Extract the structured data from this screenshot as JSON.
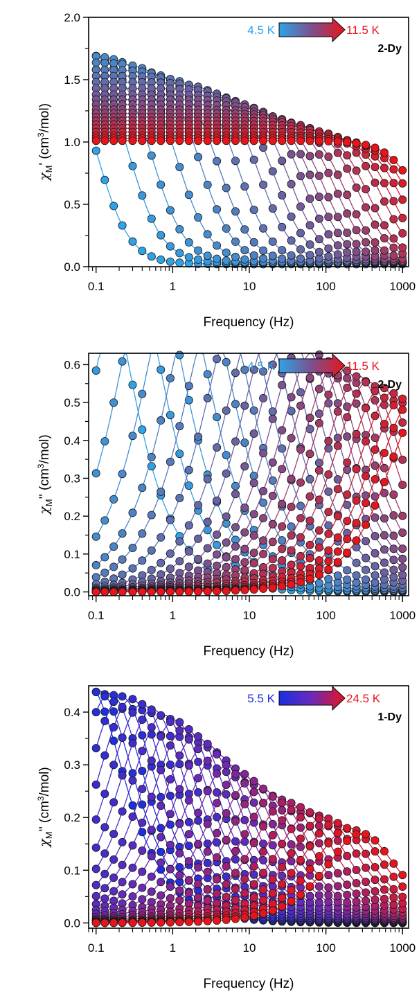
{
  "chart_data": [
    {
      "type": "scatter",
      "title": "",
      "xlabel": "Frequency (Hz)",
      "ylabel": "χM' (cm³/mol)",
      "ylabel_parts": {
        "chi": "χ",
        "sub": "M",
        "prime": "'",
        "unit_pre": " (cm",
        "sup": "3",
        "unit_post": "/mol)"
      },
      "x_scale": "log",
      "xlim": [
        0.08,
        1200
      ],
      "ylim": [
        0,
        2.0
      ],
      "xticks": [
        0.1,
        1,
        10,
        100,
        1000
      ],
      "xtick_labels": [
        "0.1",
        "1",
        "10",
        "100",
        "1000"
      ],
      "yticks": [
        0,
        0.5,
        1.0,
        1.5,
        2.0
      ],
      "ytick_labels": [
        "0.0",
        "0.5",
        "1.0",
        "1.5",
        "2.0"
      ],
      "compound": "2-Dy",
      "temperature_legend": {
        "start": "4.5 K",
        "end": "11.5 K",
        "start_color": "#2ea3e6",
        "end_color": "#e8141c"
      },
      "colors": {
        "start": "#2ea3e6",
        "mid": "#7d4f8e",
        "end": "#e8141c"
      },
      "model": "debye",
      "quantity": "in-phase",
      "grid": false,
      "series": [
        {
          "chiT": 1.85,
          "chiS": 0.02,
          "tau": 1.6
        },
        {
          "chiT": 1.8,
          "chiS": 0.03,
          "tau": 0.6
        },
        {
          "chiT": 1.75,
          "chiS": 0.03,
          "tau": 0.3
        },
        {
          "chiT": 1.7,
          "chiS": 0.03,
          "tau": 0.14
        },
        {
          "chiT": 1.64,
          "chiS": 0.03,
          "tau": 0.07
        },
        {
          "chiT": 1.58,
          "chiS": 0.03,
          "tau": 0.04
        },
        {
          "chiT": 1.53,
          "chiS": 0.03,
          "tau": 0.022
        },
        {
          "chiT": 1.48,
          "chiS": 0.03,
          "tau": 0.012
        },
        {
          "chiT": 1.43,
          "chiS": 0.03,
          "tau": 0.0075
        },
        {
          "chiT": 1.38,
          "chiS": 0.03,
          "tau": 0.0048
        },
        {
          "chiT": 1.34,
          "chiS": 0.03,
          "tau": 0.0032
        },
        {
          "chiT": 1.3,
          "chiS": 0.03,
          "tau": 0.0023
        },
        {
          "chiT": 1.26,
          "chiS": 0.03,
          "tau": 0.0017
        },
        {
          "chiT": 1.23,
          "chiS": 0.03,
          "tau": 0.0012
        },
        {
          "chiT": 1.2,
          "chiS": 0.03,
          "tau": 0.0009
        },
        {
          "chiT": 1.17,
          "chiS": 0.03,
          "tau": 0.0006
        },
        {
          "chiT": 1.14,
          "chiS": 0.03,
          "tau": 0.00045
        },
        {
          "chiT": 1.11,
          "chiS": 0.03,
          "tau": 0.0003
        },
        {
          "chiT": 1.08,
          "chiS": 0.03,
          "tau": 0.00022
        },
        {
          "chiT": 1.05,
          "chiS": 0.03,
          "tau": 0.00016
        },
        {
          "chiT": 1.03,
          "chiS": 0.03,
          "tau": 0.00012
        },
        {
          "chiT": 1.01,
          "chiS": 0.03,
          "tau": 9e-05
        }
      ]
    },
    {
      "type": "scatter",
      "title": "",
      "xlabel": "Frequency (Hz)",
      "ylabel": "χM'' (cm³/mol)",
      "ylabel_parts": {
        "chi": "χ",
        "sub": "M",
        "prime": "''",
        "unit_pre": " (cm",
        "sup": "3",
        "unit_post": "/mol)"
      },
      "x_scale": "log",
      "xlim": [
        0.08,
        1200
      ],
      "ylim": [
        -0.01,
        0.63
      ],
      "xticks": [
        0.1,
        1,
        10,
        100,
        1000
      ],
      "xtick_labels": [
        "0.1",
        "1",
        "10",
        "100",
        "1000"
      ],
      "yticks": [
        0,
        0.1,
        0.2,
        0.3,
        0.4,
        0.5,
        0.6
      ],
      "ytick_labels": [
        "0.0",
        "0.1",
        "0.2",
        "0.3",
        "0.4",
        "0.5",
        "0.6"
      ],
      "compound": "2-Dy",
      "temperature_legend": {
        "start": "4.5 K",
        "end": "11.5 K",
        "start_color": "#2ea3e6",
        "end_color": "#e8141c"
      },
      "colors": {
        "start": "#2ea3e6",
        "mid": "#7d4f8e",
        "end": "#e8141c"
      },
      "model": "debye",
      "quantity": "out-of-phase",
      "grid": false,
      "series": [
        {
          "chiT": 1.85,
          "chiS": 0.02,
          "tau": 1.6
        },
        {
          "chiT": 1.8,
          "chiS": 0.03,
          "tau": 0.6
        },
        {
          "chiT": 1.75,
          "chiS": 0.03,
          "tau": 0.3
        },
        {
          "chiT": 1.7,
          "chiS": 0.03,
          "tau": 0.14
        },
        {
          "chiT": 1.64,
          "chiS": 0.03,
          "tau": 0.07
        },
        {
          "chiT": 1.58,
          "chiS": 0.03,
          "tau": 0.04
        },
        {
          "chiT": 1.53,
          "chiS": 0.03,
          "tau": 0.022
        },
        {
          "chiT": 1.48,
          "chiS": 0.03,
          "tau": 0.012
        },
        {
          "chiT": 1.43,
          "chiS": 0.03,
          "tau": 0.0075
        },
        {
          "chiT": 1.38,
          "chiS": 0.03,
          "tau": 0.0048
        },
        {
          "chiT": 1.34,
          "chiS": 0.03,
          "tau": 0.0032
        },
        {
          "chiT": 1.3,
          "chiS": 0.03,
          "tau": 0.0023
        },
        {
          "chiT": 1.26,
          "chiS": 0.03,
          "tau": 0.0017
        },
        {
          "chiT": 1.23,
          "chiS": 0.03,
          "tau": 0.0012
        },
        {
          "chiT": 1.2,
          "chiS": 0.03,
          "tau": 0.0009
        },
        {
          "chiT": 1.17,
          "chiS": 0.03,
          "tau": 0.0006
        },
        {
          "chiT": 1.14,
          "chiS": 0.03,
          "tau": 0.00045
        },
        {
          "chiT": 1.11,
          "chiS": 0.03,
          "tau": 0.0003
        },
        {
          "chiT": 1.08,
          "chiS": 0.03,
          "tau": 0.00022
        },
        {
          "chiT": 1.05,
          "chiS": 0.03,
          "tau": 0.00016
        },
        {
          "chiT": 1.03,
          "chiS": 0.03,
          "tau": 0.00012
        },
        {
          "chiT": 1.01,
          "chiS": 0.03,
          "tau": 9e-05
        }
      ]
    },
    {
      "type": "scatter",
      "title": "",
      "xlabel": "Frequency (Hz)",
      "ylabel": "χM'' (cm³/mol)",
      "ylabel_parts": {
        "chi": "χ",
        "sub": "M",
        "prime": "''",
        "unit_pre": " (cm",
        "sup": "3",
        "unit_post": "/mol)"
      },
      "x_scale": "log",
      "xlim": [
        0.08,
        1200
      ],
      "ylim": [
        -0.01,
        0.45
      ],
      "xticks": [
        0.1,
        1,
        10,
        100,
        1000
      ],
      "xtick_labels": [
        "0.1",
        "1",
        "10",
        "100",
        "1000"
      ],
      "yticks": [
        0,
        0.1,
        0.2,
        0.3,
        0.4
      ],
      "ytick_labels": [
        "0.0",
        "0.1",
        "0.2",
        "0.3",
        "0.4"
      ],
      "compound": "1-Dy",
      "temperature_legend": {
        "start": "5.5 K",
        "end": "24.5 K",
        "start_color": "#1a2fe0",
        "end_color": "#e8141c"
      },
      "colors": {
        "start": "#1a2fe0",
        "mid": "#6a2ab8",
        "end": "#e8141c"
      },
      "model": "debye",
      "quantity": "out-of-phase",
      "grid": false,
      "series": [
        {
          "chiT": 0.9,
          "chiS": 0.0,
          "tau": 2.0
        },
        {
          "chiT": 0.88,
          "chiS": 0.0,
          "tau": 1.45
        },
        {
          "chiT": 0.87,
          "chiS": 0.0,
          "tau": 1.05
        },
        {
          "chiT": 0.86,
          "chiS": 0.0,
          "tau": 0.75
        },
        {
          "chiT": 0.85,
          "chiS": 0.0,
          "tau": 0.55
        },
        {
          "chiT": 0.83,
          "chiS": 0.0,
          "tau": 0.4
        },
        {
          "chiT": 0.81,
          "chiS": 0.0,
          "tau": 0.29
        },
        {
          "chiT": 0.79,
          "chiS": 0.0,
          "tau": 0.21
        },
        {
          "chiT": 0.77,
          "chiS": 0.0,
          "tau": 0.15
        },
        {
          "chiT": 0.74,
          "chiS": 0.0,
          "tau": 0.11
        },
        {
          "chiT": 0.71,
          "chiS": 0.0,
          "tau": 0.08
        },
        {
          "chiT": 0.68,
          "chiS": 0.0,
          "tau": 0.058
        },
        {
          "chiT": 0.64,
          "chiS": 0.0,
          "tau": 0.042
        },
        {
          "chiT": 0.6,
          "chiS": 0.0,
          "tau": 0.03
        },
        {
          "chiT": 0.57,
          "chiS": 0.0,
          "tau": 0.021
        },
        {
          "chiT": 0.54,
          "chiS": 0.0,
          "tau": 0.015
        },
        {
          "chiT": 0.51,
          "chiS": 0.0,
          "tau": 0.011
        },
        {
          "chiT": 0.48,
          "chiS": 0.0,
          "tau": 0.0075
        },
        {
          "chiT": 0.46,
          "chiS": 0.0,
          "tau": 0.0052
        },
        {
          "chiT": 0.44,
          "chiS": 0.0,
          "tau": 0.0036
        },
        {
          "chiT": 0.42,
          "chiS": 0.0,
          "tau": 0.0025
        },
        {
          "chiT": 0.4,
          "chiS": 0.0,
          "tau": 0.0017
        },
        {
          "chiT": 0.38,
          "chiS": 0.0,
          "tau": 0.0012
        },
        {
          "chiT": 0.36,
          "chiS": 0.0,
          "tau": 0.0008
        },
        {
          "chiT": 0.34,
          "chiS": 0.0,
          "tau": 0.00055
        }
      ]
    }
  ],
  "frequencies_hz": [
    0.1,
    0.13,
    0.17,
    0.22,
    0.3,
    0.4,
    0.53,
    0.7,
    0.93,
    1.23,
    1.63,
    2.15,
    2.85,
    3.77,
    5.0,
    6.6,
    8.7,
    11.5,
    15.2,
    20.2,
    26.7,
    35.3,
    46.7,
    61.8,
    81.7,
    108,
    143,
    189,
    250,
    331,
    437,
    579,
    765,
    1000
  ]
}
